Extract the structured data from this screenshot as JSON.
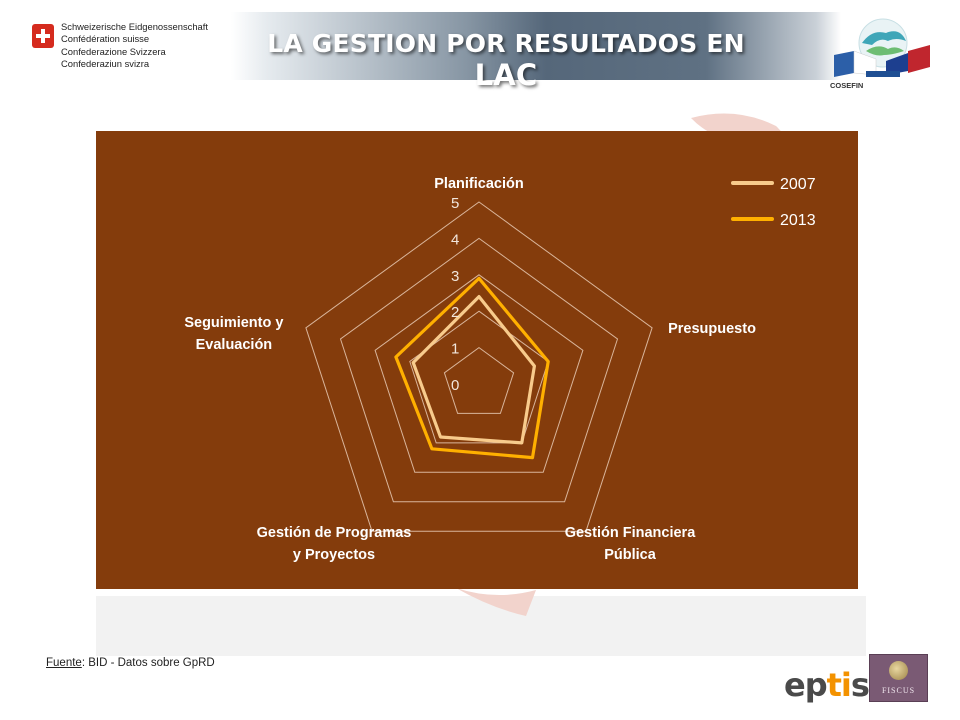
{
  "header": {
    "title_main": "LA GESTION POR RESULTADOS EN ",
    "title_suffix": "LAC",
    "swiss_lines": [
      "Schweizerische Eidgenossenschaft",
      "Confédération suisse",
      "Confederazione Svizzera",
      "Confederaziun svizra"
    ],
    "cosefin_label": "COSEFIN"
  },
  "chart_data": {
    "type": "radar",
    "axes": [
      "Planificación",
      "Presupuesto",
      "Gestión Financiera Pública",
      "Gestión de Programas y Proyectos",
      "Seguimiento y Evaluación"
    ],
    "axis_label_lines": [
      [
        "Planificación"
      ],
      [
        "Presupuesto"
      ],
      [
        "Gestión Financiera",
        "Pública"
      ],
      [
        "Gestión de Programas",
        "y Proyectos"
      ],
      [
        "Seguimiento y",
        "Evaluación"
      ]
    ],
    "r_ticks": [
      "0",
      "1",
      "2",
      "3",
      "4",
      "5"
    ],
    "rlim": [
      0,
      5
    ],
    "legend_position": "top-right",
    "series": [
      {
        "name": "2007",
        "values": [
          2.4,
          1.6,
          2.0,
          1.8,
          1.9
        ],
        "color": "#f8cb8c"
      },
      {
        "name": "2013",
        "values": [
          2.9,
          2.0,
          2.5,
          2.2,
          2.4
        ],
        "color": "#ffb000"
      }
    ]
  },
  "colors": {
    "panel": "#843c0c",
    "grid": "#d9b59b"
  },
  "footer": {
    "source_label": "Fuente",
    "source_text": ": BID - Datos sobre GpRD",
    "eptisa_a": "ep",
    "eptisa_b": "ti",
    "eptisa_c": "sa",
    "fiscus_label": "FISCUS"
  }
}
